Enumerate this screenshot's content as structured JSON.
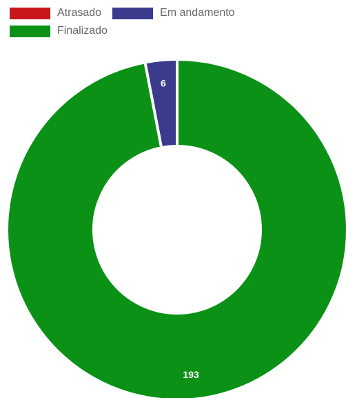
{
  "chart_data": {
    "type": "pie",
    "donut": true,
    "categories": [
      "Atrasado",
      "Em andamento",
      "Finalizado"
    ],
    "values": [
      0,
      6,
      193
    ],
    "colors": [
      "#c8161d",
      "#3a3b8c",
      "#0b9116"
    ],
    "data_labels": [
      "",
      "6",
      "193"
    ],
    "legend_position": "top-left"
  },
  "legend": {
    "items": [
      {
        "label": "Atrasado",
        "color": "#c8161d"
      },
      {
        "label": "Em andamento",
        "color": "#3a3b8c"
      },
      {
        "label": "Finalizado",
        "color": "#0b9116"
      }
    ]
  }
}
